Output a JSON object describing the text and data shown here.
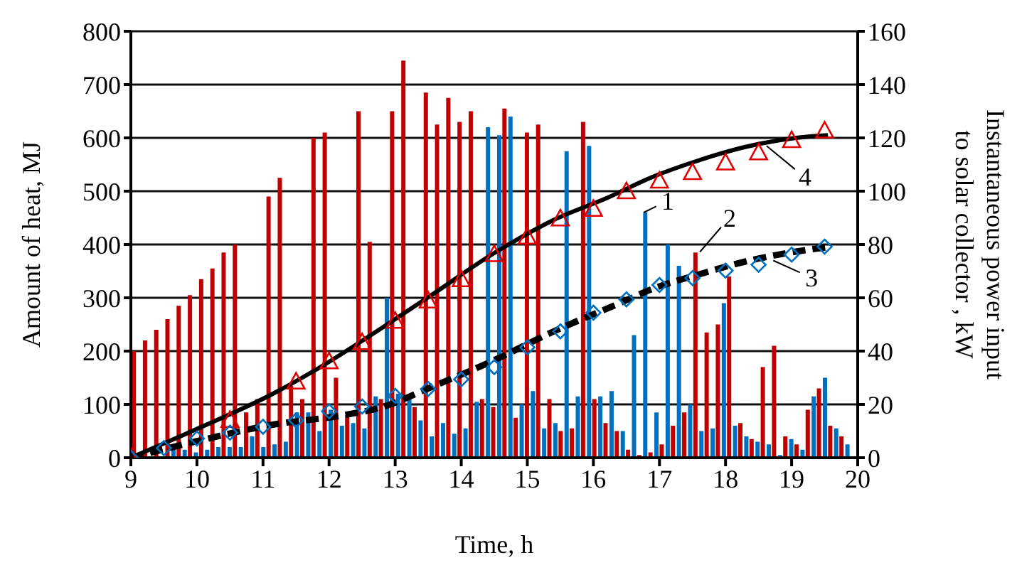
{
  "chart_data": {
    "type": "bar",
    "xlabel": "Time, h",
    "ylabel": "Amount of heat, MJ",
    "y2label": "Instantaneous power input to solar collector , kW",
    "x": [
      9.09,
      9.26,
      9.43,
      9.6,
      9.77,
      9.94,
      10.11,
      10.28,
      10.45,
      10.62,
      10.79,
      10.96,
      11.13,
      11.3,
      11.47,
      11.64,
      11.81,
      11.98,
      12.15,
      12.32,
      12.49,
      12.66,
      12.83,
      13,
      13.17,
      13.34,
      13.51,
      13.68,
      13.85,
      14.02,
      14.19,
      14.36,
      14.53,
      14.7,
      14.87,
      15.04,
      15.21,
      15.38,
      15.55,
      15.72,
      15.89,
      16.06,
      16.23,
      16.4,
      16.57,
      16.74,
      16.91,
      17.08,
      17.25,
      17.42,
      17.59,
      17.76,
      17.93,
      18.1,
      18.27,
      18.44,
      18.61,
      18.78,
      18.95,
      19.12,
      19.29,
      19.46,
      19.63,
      19.8
    ],
    "series": [
      {
        "axis": "y2",
        "color": "#c00000",
        "values": [
          40,
          44,
          48,
          52,
          57,
          61,
          67,
          71,
          77,
          80,
          17,
          22,
          98,
          105,
          27,
          22,
          120,
          122,
          30,
          16,
          130,
          81,
          22,
          130,
          149,
          19,
          137,
          125,
          135,
          126,
          130,
          22,
          19,
          131,
          15,
          122,
          125,
          22,
          10,
          11,
          126,
          22,
          13,
          10,
          3,
          1,
          2,
          5,
          12,
          17,
          77,
          47,
          50,
          68,
          13,
          7,
          34,
          42,
          8,
          5,
          18,
          26,
          12,
          8
        ]
      },
      {
        "axis": "y2",
        "color": "#0070c0",
        "values": [
          null,
          null,
          null,
          3,
          3,
          2,
          3,
          4,
          4,
          4,
          8,
          4,
          5,
          6,
          17,
          17,
          10,
          18,
          12,
          13,
          11,
          23,
          60,
          24,
          22,
          14,
          8,
          13,
          9,
          11,
          21,
          124,
          121,
          128,
          20,
          25,
          11,
          13,
          115,
          23,
          117,
          23,
          25,
          10,
          46,
          92,
          17,
          80,
          72,
          20,
          10,
          11,
          58,
          12,
          8,
          6,
          5,
          1,
          7,
          3,
          23,
          30,
          11,
          5
        ]
      },
      {
        "type": "line",
        "color": "#000000",
        "line_style": "solid",
        "marker": "none",
        "x": [
          9,
          10,
          11.15,
          11.8,
          12.83,
          13.5,
          14.5,
          15.4,
          16.2,
          16.9,
          17.6,
          18.3,
          19.3,
          19.55
        ],
        "values": [
          0,
          54,
          120,
          165,
          246,
          301,
          384,
          446,
          487,
          527,
          558,
          583,
          603,
          605
        ]
      },
      {
        "type": "line",
        "color": "#000000",
        "line_style": "dashed",
        "marker": "none",
        "x": [
          9,
          10,
          11.15,
          12.23,
          12.83,
          13.5,
          14.5,
          15.4,
          16.4,
          16.9,
          17.6,
          18.3,
          19.3,
          19.55
        ],
        "values": [
          0,
          31,
          62,
          80,
          96,
          130,
          183,
          237,
          290,
          317,
          344,
          368,
          391,
          395
        ]
      },
      {
        "type": "scatter",
        "color": "#e00000",
        "marker": "triangle",
        "x": [
          9,
          10.5,
          11.5,
          12,
          12.5,
          13,
          13.5,
          14,
          14.5,
          15,
          15.5,
          16,
          16.5,
          17,
          17.5,
          18,
          18.5,
          19,
          19.5
        ],
        "values": [
          0,
          71,
          143,
          181,
          217,
          257,
          295,
          335,
          382,
          415,
          449,
          467,
          500,
          520,
          536,
          554,
          573,
          596,
          614
        ]
      },
      {
        "type": "scatter",
        "color": "#0070c0",
        "marker": "diamond",
        "x": [
          9,
          9.5,
          10,
          10.5,
          11,
          11.5,
          12,
          12.5,
          13,
          13.5,
          14,
          14.5,
          15,
          15.5,
          16,
          16.5,
          17,
          17.5,
          18,
          18.5,
          19,
          19.5
        ],
        "values": [
          0,
          18,
          36,
          47,
          58,
          70,
          87,
          96,
          116,
          129,
          147,
          170,
          207,
          237,
          272,
          297,
          324,
          337,
          351,
          362,
          381,
          396
        ]
      }
    ],
    "xlim": [
      9,
      20
    ],
    "xticks": [
      9,
      10,
      11,
      12,
      13,
      14,
      15,
      16,
      17,
      18,
      19,
      20
    ],
    "ylim": [
      0,
      800
    ],
    "yticks": [
      0,
      100,
      200,
      300,
      400,
      500,
      600,
      700,
      800
    ],
    "y2lim": [
      0,
      160
    ],
    "y2ticks": [
      0,
      20,
      40,
      60,
      80,
      100,
      120,
      140,
      160
    ],
    "grid": "y",
    "annotations": [
      {
        "text": "1",
        "x": 16.74,
        "y": 460
      },
      {
        "text": "2",
        "x": 17.59,
        "y": 386
      },
      {
        "text": "3",
        "x": 18.7,
        "y": 370
      },
      {
        "text": "4",
        "x": 18.6,
        "y": 585
      }
    ]
  }
}
